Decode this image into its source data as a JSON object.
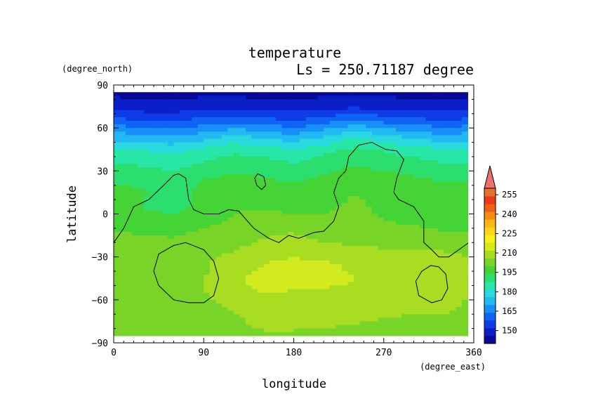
{
  "chart_data": {
    "type": "heatmap",
    "title": "temperature",
    "subtitle": "Ls = 250.71187 degree",
    "xlabel": "longitude",
    "ylabel": "latitude",
    "x_unit": "(degree_east)",
    "y_unit": "(degree_north)",
    "xlim": [
      0,
      360
    ],
    "ylim": [
      -90,
      90
    ],
    "x_ticks": [
      0,
      90,
      180,
      270,
      360
    ],
    "y_ticks": [
      90,
      60,
      30,
      0,
      -30,
      -60,
      -90
    ],
    "colorbar": {
      "min": 140,
      "max": 260,
      "step": 7.5,
      "extend": "max",
      "tick_labels": [
        150,
        165,
        180,
        195,
        210,
        225,
        240,
        255
      ],
      "colors": [
        "#0a0a9a",
        "#0b1fc8",
        "#0d3ce8",
        "#1063f5",
        "#1690f8",
        "#22b8f2",
        "#2ad9e0",
        "#26e7a8",
        "#2bde6e",
        "#45d435",
        "#78d427",
        "#a8dd22",
        "#d2ea1e",
        "#f4f018",
        "#fbd61a",
        "#fbb712",
        "#f78a10",
        "#f06012",
        "#ea3a18",
        "#e8702f"
      ]
    },
    "z_grid_description_lat_rows_north_to_south": [
      {
        "lat": 85,
        "values_by_lon_0_to_360_step_30": [
          145,
          145,
          145,
          145,
          145,
          145,
          145,
          145,
          145,
          145,
          145,
          145,
          145
        ]
      },
      {
        "lat": 75,
        "values_by_lon_0_to_360_step_30": [
          152,
          150,
          150,
          152,
          152,
          151,
          150,
          152,
          153,
          152,
          151,
          150,
          152
        ]
      },
      {
        "lat": 65,
        "values_by_lon_0_to_360_step_30": [
          165,
          163,
          162,
          165,
          168,
          165,
          163,
          167,
          172,
          168,
          165,
          163,
          165
        ]
      },
      {
        "lat": 55,
        "values_by_lon_0_to_360_step_30": [
          180,
          178,
          176,
          180,
          185,
          182,
          178,
          183,
          190,
          186,
          182,
          178,
          180
        ]
      },
      {
        "lat": 45,
        "values_by_lon_0_to_360_step_30": [
          193,
          192,
          190,
          194,
          198,
          196,
          193,
          197,
          202,
          199,
          196,
          193,
          193
        ]
      },
      {
        "lat": 35,
        "values_by_lon_0_to_360_step_30": [
          200,
          199,
          197,
          201,
          204,
          203,
          200,
          204,
          207,
          205,
          203,
          200,
          200
        ]
      },
      {
        "lat": 25,
        "values_by_lon_0_to_360_step_30": [
          206,
          205,
          203,
          207,
          209,
          208,
          206,
          209,
          212,
          210,
          208,
          206,
          206
        ]
      },
      {
        "lat": 15,
        "values_by_lon_0_to_360_step_30": [
          210,
          208,
          205,
          210,
          212,
          211,
          210,
          212,
          215,
          213,
          212,
          210,
          210
        ]
      },
      {
        "lat": 5,
        "values_by_lon_0_to_360_step_30": [
          211,
          207,
          205,
          209,
          214,
          213,
          211,
          214,
          216,
          214,
          212,
          211,
          211
        ]
      },
      {
        "lat": -5,
        "values_by_lon_0_to_360_step_30": [
          213,
          211,
          210,
          213,
          216,
          220,
          220,
          216,
          217,
          215,
          214,
          213,
          213
        ]
      },
      {
        "lat": -15,
        "values_by_lon_0_to_360_step_30": [
          216,
          215,
          214,
          217,
          219,
          222,
          223,
          220,
          219,
          218,
          217,
          216,
          216
        ]
      },
      {
        "lat": -25,
        "values_by_lon_0_to_360_step_30": [
          221,
          220,
          220,
          221,
          222,
          225,
          226,
          225,
          224,
          223,
          222,
          222,
          221
        ]
      },
      {
        "lat": -35,
        "values_by_lon_0_to_360_step_30": [
          222,
          222,
          222,
          222,
          225,
          230,
          233,
          231,
          229,
          228,
          227,
          227,
          222
        ]
      },
      {
        "lat": -45,
        "values_by_lon_0_to_360_step_30": [
          222,
          222,
          222,
          222,
          228,
          234,
          236,
          232,
          230,
          228,
          227,
          227,
          222
        ]
      },
      {
        "lat": -55,
        "values_by_lon_0_to_360_step_30": [
          222,
          222,
          222,
          222,
          227,
          230,
          229,
          229,
          229,
          227,
          226,
          226,
          222
        ]
      },
      {
        "lat": -65,
        "values_by_lon_0_to_360_step_30": [
          221,
          221,
          221,
          221,
          223,
          227,
          226,
          226,
          226,
          225,
          224,
          224,
          221
        ]
      },
      {
        "lat": -75,
        "values_by_lon_0_to_360_step_30": [
          220,
          220,
          220,
          220,
          221,
          225,
          225,
          224,
          223,
          222,
          221,
          221,
          220
        ]
      },
      {
        "lat": -85,
        "values_by_lon_0_to_360_step_30": [
          220,
          220,
          220,
          220,
          220,
          221,
          221,
          221,
          220,
          220,
          220,
          220,
          220
        ]
      }
    ],
    "contour_lines": [
      {
        "name": "topography-main",
        "points": [
          [
            0,
            -20
          ],
          [
            10,
            -10
          ],
          [
            20,
            5
          ],
          [
            35,
            10
          ],
          [
            50,
            20
          ],
          [
            60,
            27
          ],
          [
            65,
            28
          ],
          [
            72,
            25
          ],
          [
            75,
            10
          ],
          [
            80,
            3
          ],
          [
            90,
            0
          ],
          [
            105,
            0
          ],
          [
            115,
            3
          ],
          [
            125,
            2
          ],
          [
            140,
            -10
          ],
          [
            155,
            -17
          ],
          [
            165,
            -20
          ],
          [
            175,
            -15
          ],
          [
            185,
            -17
          ],
          [
            200,
            -13
          ],
          [
            210,
            -12
          ],
          [
            220,
            -5
          ],
          [
            225,
            5
          ],
          [
            220,
            15
          ],
          [
            225,
            25
          ],
          [
            232,
            30
          ],
          [
            235,
            40
          ],
          [
            245,
            48
          ],
          [
            258,
            50
          ],
          [
            272,
            45
          ],
          [
            283,
            44
          ],
          [
            290,
            38
          ],
          [
            283,
            25
          ],
          [
            280,
            15
          ],
          [
            285,
            10
          ],
          [
            300,
            5
          ],
          [
            310,
            -5
          ],
          [
            310,
            -20
          ],
          [
            318,
            -25
          ],
          [
            325,
            -30
          ],
          [
            335,
            -30
          ],
          [
            345,
            -25
          ],
          [
            355,
            -20
          ]
        ]
      },
      {
        "name": "crater-left",
        "closed": true,
        "points": [
          [
            72,
            -20
          ],
          [
            90,
            -25
          ],
          [
            100,
            -33
          ],
          [
            105,
            -45
          ],
          [
            100,
            -57
          ],
          [
            90,
            -62
          ],
          [
            75,
            -62
          ],
          [
            60,
            -60
          ],
          [
            45,
            -50
          ],
          [
            40,
            -40
          ],
          [
            45,
            -28
          ],
          [
            60,
            -22
          ]
        ]
      },
      {
        "name": "crater-right",
        "closed": true,
        "points": [
          [
            325,
            -37
          ],
          [
            332,
            -42
          ],
          [
            334,
            -52
          ],
          [
            328,
            -60
          ],
          [
            318,
            -62
          ],
          [
            305,
            -57
          ],
          [
            302,
            -47
          ],
          [
            308,
            -40
          ],
          [
            317,
            -36
          ]
        ]
      },
      {
        "name": "small-island",
        "closed": true,
        "points": [
          [
            144,
            28
          ],
          [
            150,
            26
          ],
          [
            152,
            20
          ],
          [
            148,
            17
          ],
          [
            143,
            20
          ],
          [
            141,
            25
          ]
        ]
      }
    ]
  }
}
